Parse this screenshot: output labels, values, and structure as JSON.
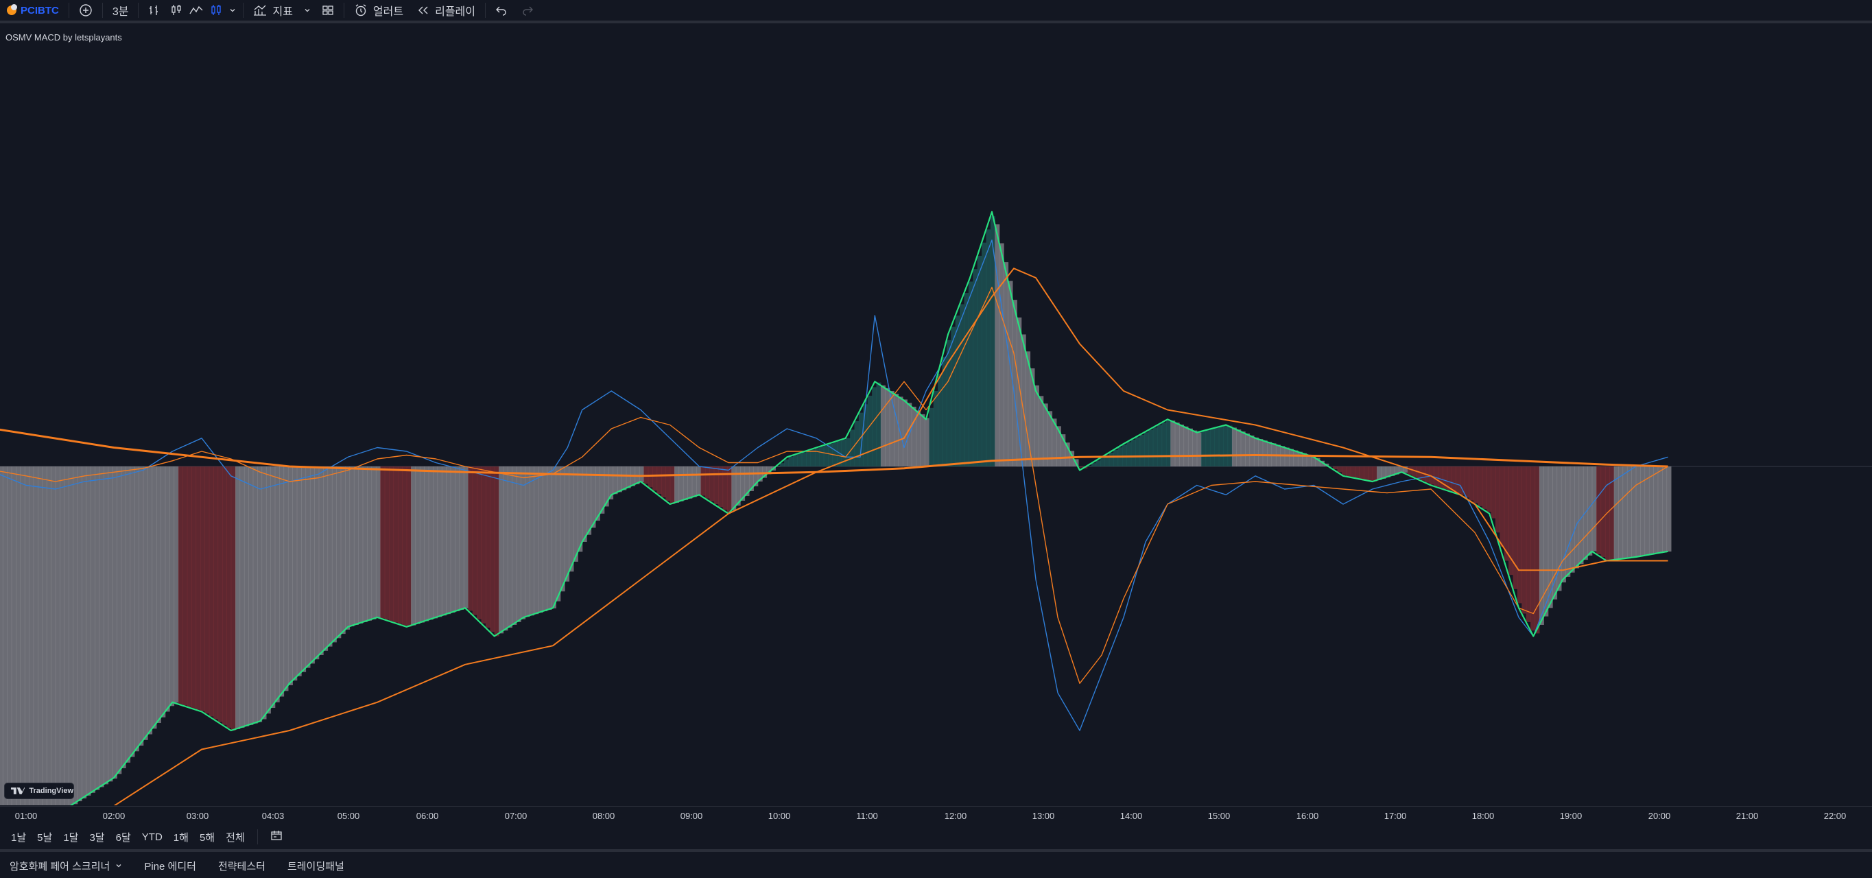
{
  "toolbar": {
    "symbol": "PCIBTC",
    "interval": "3분",
    "indicators_label": "지표",
    "alert_label": "얼러트",
    "replay_label": "리플레이"
  },
  "indicator": {
    "title": "OSMV MACD by letsplayants"
  },
  "branding": {
    "logo_text": "TradingView"
  },
  "time_axis": {
    "labels": [
      "01:00",
      "02:00",
      "03:00",
      "04:03",
      "05:00",
      "06:00",
      "07:00",
      "08:00",
      "09:00",
      "10:00",
      "11:00",
      "12:00",
      "13:00",
      "14:00",
      "15:00",
      "16:00",
      "17:00",
      "18:00",
      "19:00",
      "20:00",
      "21:00",
      "22:00"
    ]
  },
  "range_buttons": [
    "1날",
    "5날",
    "1달",
    "3달",
    "6달",
    "YTD",
    "1해",
    "5해",
    "전체"
  ],
  "bottom_tabs": {
    "screener": "암호화폐 페어 스크리너",
    "pine": "Pine 에디터",
    "strategy": "전략테스터",
    "trading": "트레이딩패널"
  },
  "colors": {
    "background": "#131722",
    "macd_blue": "#2f7ed8",
    "signal_orange": "#f57c1f",
    "osmv_green": "#26e07f",
    "hist_bull": "#1f5a5a",
    "hist_bear": "#7a2e35",
    "hist_neutral": "#8a8a90"
  },
  "chart_data": {
    "type": "line",
    "x_range": [
      "01:00",
      "19:42"
    ],
    "series": [
      {
        "color": "#2f7ed8",
        "x": [
          "00:38",
          "01:00",
          "01:20",
          "01:40",
          "02:00",
          "02:20",
          "02:40",
          "03:00",
          "03:10",
          "03:20",
          "03:40",
          "04:00",
          "04:20",
          "04:40",
          "05:00",
          "05:20",
          "05:40",
          "06:00",
          "06:20",
          "06:40",
          "07:00",
          "07:10",
          "07:20",
          "07:40",
          "08:00",
          "08:20",
          "08:40",
          "09:00",
          "09:20",
          "09:40",
          "10:00",
          "10:20",
          "10:30",
          "10:40",
          "10:50",
          "11:00",
          "11:15",
          "11:30",
          "11:45",
          "12:00",
          "12:15",
          "12:30",
          "12:45",
          "13:00",
          "13:15",
          "13:30",
          "13:45",
          "14:00",
          "14:20",
          "14:40",
          "15:00",
          "15:20",
          "15:40",
          "16:00",
          "16:20",
          "16:40",
          "17:00",
          "17:20",
          "17:40",
          "18:00",
          "18:10",
          "18:20",
          "18:40",
          "19:00",
          "19:20",
          "19:42"
        ],
        "values": [
          -3,
          -10,
          -12,
          -8,
          -6,
          -2,
          8,
          15,
          5,
          -5,
          -12,
          -8,
          -4,
          5,
          10,
          8,
          2,
          -2,
          -6,
          -10,
          -2,
          10,
          30,
          40,
          30,
          15,
          0,
          -2,
          10,
          20,
          15,
          5,
          5,
          80,
          40,
          10,
          40,
          60,
          90,
          120,
          40,
          -60,
          -120,
          -140,
          -110,
          -80,
          -40,
          -20,
          -10,
          -15,
          -5,
          -12,
          -10,
          -20,
          -12,
          -8,
          -5,
          -10,
          -40,
          -80,
          -90,
          -70,
          -30,
          -10,
          0,
          5
        ]
      },
      {
        "color": "#f57c1f",
        "x": [
          "00:38",
          "01:00",
          "01:20",
          "01:40",
          "02:00",
          "02:20",
          "02:40",
          "03:00",
          "03:20",
          "03:40",
          "04:00",
          "04:20",
          "04:40",
          "05:00",
          "05:20",
          "05:40",
          "06:00",
          "06:20",
          "06:40",
          "07:00",
          "07:20",
          "07:40",
          "08:00",
          "08:20",
          "08:40",
          "09:00",
          "09:20",
          "09:40",
          "10:00",
          "10:20",
          "10:40",
          "11:00",
          "11:15",
          "11:30",
          "11:45",
          "12:00",
          "12:15",
          "12:30",
          "12:45",
          "13:00",
          "13:15",
          "13:30",
          "14:00",
          "14:30",
          "15:00",
          "15:30",
          "16:00",
          "16:30",
          "17:00",
          "17:30",
          "18:00",
          "18:10",
          "18:30",
          "19:00",
          "19:20",
          "19:42"
        ],
        "values": [
          -2,
          -5,
          -8,
          -5,
          -3,
          -1,
          3,
          8,
          4,
          -3,
          -8,
          -6,
          -2,
          4,
          6,
          4,
          0,
          -3,
          -6,
          -4,
          5,
          20,
          26,
          22,
          10,
          2,
          2,
          8,
          8,
          5,
          25,
          45,
          30,
          45,
          70,
          95,
          60,
          -10,
          -80,
          -115,
          -100,
          -70,
          -20,
          -10,
          -8,
          -10,
          -12,
          -14,
          -12,
          -35,
          -75,
          -78,
          -50,
          -25,
          -10,
          0
        ]
      },
      {
        "color": "#26e07f",
        "x": [
          "00:38",
          "01:00",
          "01:20",
          "01:40",
          "02:00",
          "02:20",
          "02:40",
          "03:00",
          "03:20",
          "03:40",
          "04:00",
          "04:20",
          "04:40",
          "05:00",
          "05:20",
          "05:40",
          "06:00",
          "06:20",
          "06:40",
          "07:00",
          "07:20",
          "07:40",
          "08:00",
          "08:20",
          "08:40",
          "09:00",
          "09:20",
          "09:40",
          "10:00",
          "10:20",
          "10:40",
          "11:00",
          "11:15",
          "11:30",
          "11:45",
          "12:00",
          "12:15",
          "12:30",
          "12:45",
          "13:00",
          "13:15",
          "13:30",
          "14:00",
          "14:20",
          "14:40",
          "15:00",
          "15:20",
          "15:40",
          "16:00",
          "16:20",
          "16:40",
          "17:00",
          "17:20",
          "17:40",
          "18:00",
          "18:10",
          "18:30",
          "18:50",
          "19:00",
          "19:20",
          "19:42"
        ],
        "values": [
          -195,
          -190,
          -185,
          -175,
          -165,
          -145,
          -125,
          -130,
          -140,
          -135,
          -115,
          -100,
          -85,
          -80,
          -85,
          -80,
          -75,
          -90,
          -80,
          -75,
          -40,
          -15,
          -8,
          -20,
          -15,
          -25,
          -8,
          5,
          10,
          15,
          45,
          35,
          25,
          70,
          100,
          135,
          85,
          40,
          20,
          -2,
          5,
          12,
          25,
          18,
          22,
          15,
          10,
          5,
          -5,
          -8,
          -3,
          -10,
          -15,
          -25,
          -75,
          -90,
          -60,
          -45,
          -50,
          -48,
          -45
        ]
      },
      {
        "color": "#f57c1f",
        "x": [
          "00:38",
          "01:00",
          "02:00",
          "03:00",
          "04:00",
          "05:00",
          "06:00",
          "07:00",
          "08:00",
          "09:00",
          "10:00",
          "11:00",
          "11:30",
          "12:00",
          "12:15",
          "12:30",
          "13:00",
          "13:30",
          "14:00",
          "15:00",
          "16:00",
          "17:00",
          "17:30",
          "18:00",
          "18:30",
          "19:00",
          "19:42"
        ],
        "values": [
          -210,
          -205,
          -180,
          -150,
          -140,
          -125,
          -105,
          -95,
          -60,
          -25,
          -3,
          15,
          55,
          90,
          105,
          100,
          65,
          40,
          30,
          22,
          10,
          -5,
          -20,
          -55,
          -55,
          -50,
          -50
        ]
      },
      {
        "color": "#f57c1f",
        "x": [
          "00:38",
          "02:00",
          "04:00",
          "06:00",
          "08:00",
          "10:00",
          "11:00",
          "12:00",
          "13:00",
          "15:00",
          "17:00",
          "18:00",
          "19:00",
          "19:42"
        ],
        "values": [
          20,
          10,
          0,
          -3,
          -5,
          -3,
          -1,
          3,
          5,
          6,
          5,
          3,
          1,
          0
        ]
      }
    ]
  }
}
